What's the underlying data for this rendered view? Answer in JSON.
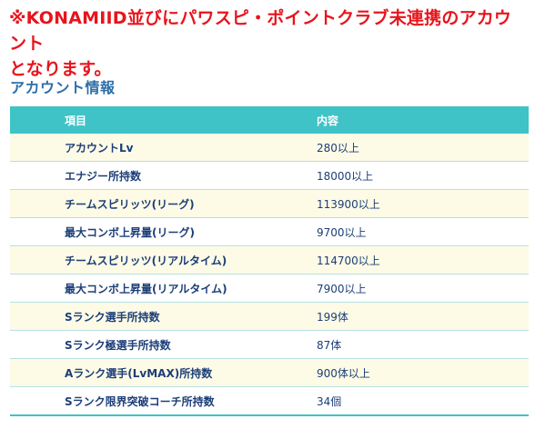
{
  "notice": {
    "line1": "※KONAMIID並びにパワスピ・ポイントクラブ未連携のアカウント",
    "line2": "となります。"
  },
  "section": {
    "title": "アカウント情報"
  },
  "table": {
    "headers": {
      "item": "項目",
      "content": "内容"
    },
    "rows": [
      {
        "item": "アカウントLv",
        "value": "280以上"
      },
      {
        "item": "エナジー所持数",
        "value": "18000以上"
      },
      {
        "item": "チームスピリッツ(リーグ)",
        "value": "113900以上"
      },
      {
        "item": "最大コンボ上昇量(リーグ)",
        "value": "9700以上"
      },
      {
        "item": "チームスピリッツ(リアルタイム)",
        "value": "114700以上"
      },
      {
        "item": "最大コンボ上昇量(リアルタイム)",
        "value": "7900以上"
      },
      {
        "item": "Sランク選手所持数",
        "value": "199体"
      },
      {
        "item": "Sランク極選手所持数",
        "value": "87体"
      },
      {
        "item": "Aランク選手(LvMAX)所持数",
        "value": "900体以上"
      },
      {
        "item": "Sランク限界突破コーチ所持数",
        "value": "34個"
      }
    ]
  },
  "colors": {
    "notice_red": "#e8141c",
    "title_blue": "#2e6fa8",
    "header_teal": "#3fc3c7",
    "row_text": "#1c3e78",
    "row_alt": "#fdfbe6"
  }
}
